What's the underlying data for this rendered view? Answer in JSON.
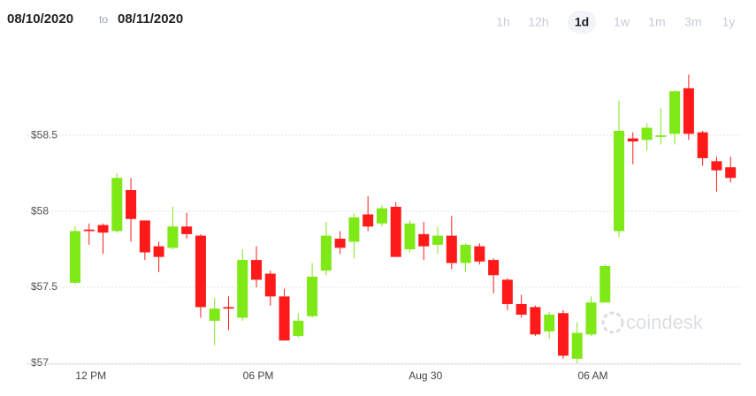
{
  "date_range": {
    "from": "08/10/2020",
    "to_word": "to",
    "to": "08/11/2020"
  },
  "range_buttons": [
    "1h",
    "12h",
    "1d",
    "1w",
    "1m",
    "3m",
    "1y"
  ],
  "active_button": 2,
  "watermark": "coindesk",
  "chart_data": {
    "type": "candlestick",
    "categories": [
      null,
      "12 PM",
      null,
      null,
      null,
      null,
      null,
      null,
      null,
      null,
      null,
      null,
      null,
      "06 PM",
      null,
      null,
      null,
      null,
      null,
      null,
      null,
      null,
      null,
      null,
      null,
      "Aug 30",
      null,
      null,
      null,
      null,
      null,
      null,
      null,
      null,
      null,
      null,
      null,
      "06 AM",
      null,
      null,
      null,
      null,
      null,
      null,
      null,
      null,
      null,
      null
    ],
    "open": [
      57.53,
      57.88,
      57.91,
      57.87,
      58.14,
      57.94,
      57.77,
      57.76,
      57.9,
      57.84,
      57.28,
      57.37,
      57.3,
      57.68,
      57.59,
      57.44,
      57.18,
      57.31,
      57.61,
      57.82,
      57.8,
      57.98,
      57.92,
      58.03,
      57.75,
      57.85,
      57.78,
      57.84,
      57.66,
      57.77,
      57.68,
      57.55,
      57.39,
      57.37,
      57.21,
      57.33,
      57.03,
      57.19,
      57.4,
      57.87,
      58.48,
      58.47,
      58.49,
      58.51,
      58.81,
      58.52,
      58.33,
      58.29
    ],
    "high": [
      57.9,
      57.92,
      57.92,
      58.25,
      58.22,
      57.94,
      57.8,
      58.03,
      57.99,
      57.85,
      57.43,
      57.44,
      57.75,
      57.77,
      57.61,
      57.49,
      57.33,
      57.66,
      57.93,
      57.87,
      57.99,
      58.1,
      58.04,
      58.06,
      57.94,
      57.93,
      57.9,
      57.97,
      57.79,
      57.79,
      57.69,
      57.56,
      57.45,
      57.38,
      57.34,
      57.35,
      57.27,
      57.44,
      57.65,
      58.73,
      58.52,
      58.58,
      58.68,
      58.8,
      58.9,
      58.53,
      58.36,
      58.36
    ],
    "low": [
      57.52,
      57.78,
      57.72,
      57.86,
      57.8,
      57.68,
      57.6,
      57.75,
      57.82,
      57.3,
      57.12,
      57.22,
      57.28,
      57.5,
      57.38,
      57.15,
      57.17,
      57.3,
      57.58,
      57.72,
      57.69,
      57.87,
      57.9,
      57.7,
      57.73,
      57.68,
      57.72,
      57.62,
      57.6,
      57.65,
      57.46,
      57.35,
      57.3,
      57.18,
      57.16,
      57.03,
      57.0,
      57.18,
      57.4,
      57.83,
      58.31,
      58.4,
      58.44,
      58.44,
      58.47,
      58.3,
      58.13,
      58.19
    ],
    "close": [
      57.87,
      57.87,
      57.86,
      58.22,
      57.95,
      57.73,
      57.7,
      57.9,
      57.85,
      57.37,
      57.36,
      57.36,
      57.68,
      57.55,
      57.44,
      57.15,
      57.28,
      57.57,
      57.84,
      57.76,
      57.96,
      57.9,
      58.02,
      57.7,
      57.92,
      57.77,
      57.84,
      57.66,
      57.78,
      57.67,
      57.58,
      57.39,
      57.32,
      57.19,
      57.32,
      57.05,
      57.2,
      57.4,
      57.64,
      58.53,
      58.46,
      58.55,
      58.5,
      58.79,
      58.51,
      58.35,
      58.27,
      58.22
    ],
    "up_color": "#7fe817",
    "down_color": "#ff1a1a",
    "ylim": [
      57,
      59.1
    ],
    "yticks": [
      {
        "value": 57,
        "label": "$57"
      },
      {
        "value": 57.5,
        "label": "$57.5"
      },
      {
        "value": 58,
        "label": "$58"
      },
      {
        "value": 58.5,
        "label": "$58.5"
      }
    ],
    "grid": true
  }
}
